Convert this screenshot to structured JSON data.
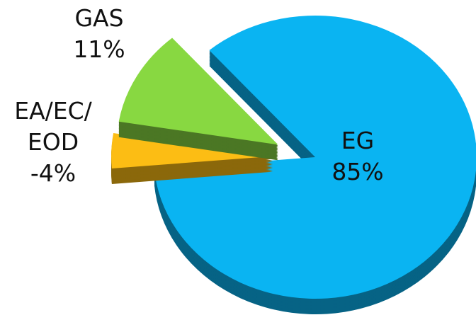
{
  "chart_data": {
    "type": "pie",
    "categories": [
      "EG",
      "EA/EC/EOD",
      "GAS"
    ],
    "values": [
      85,
      -4,
      11
    ],
    "value_labels": [
      "85%",
      "-4%",
      "11%"
    ],
    "colors": [
      "#0ab4f2",
      "#fcbd14",
      "#88d841"
    ]
  }
}
